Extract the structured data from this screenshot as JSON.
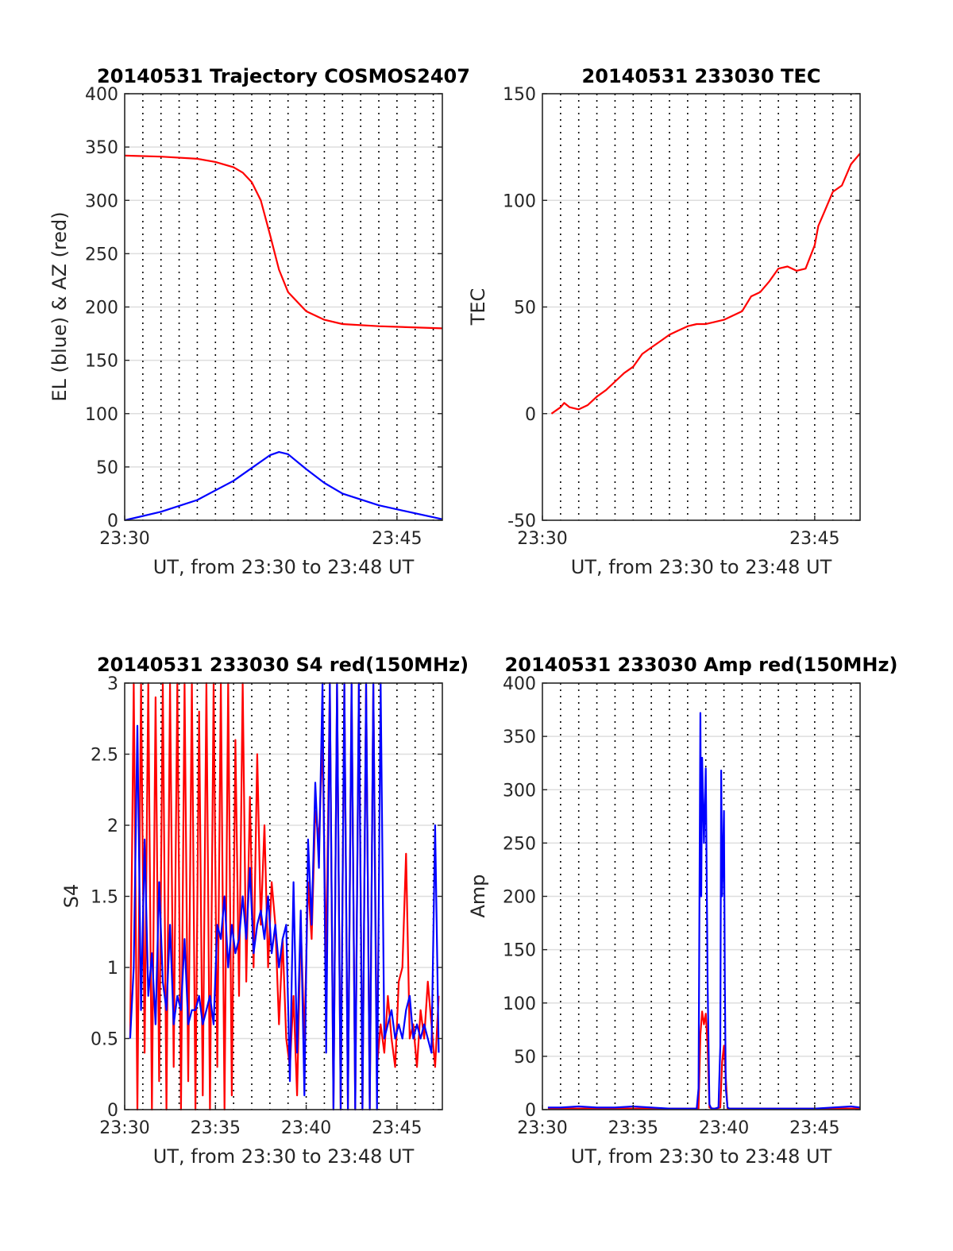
{
  "figure": {
    "background": "#ffffff",
    "series_colors": {
      "red": "#ff0000",
      "blue": "#0000ff"
    }
  },
  "chart_data": [
    {
      "id": "p1",
      "type": "line",
      "title": "20140531 Trajectory COSMOS2407",
      "xlabel": "UT, from 23:30 to 23:48 UT",
      "ylabel": "EL (blue) & AZ (red)",
      "x_unit": "minutes after 23:30 UT",
      "xlim": [
        0,
        17.5
      ],
      "ylim": [
        0,
        400
      ],
      "xticks": [
        {
          "x": 0,
          "label": "23:30"
        },
        {
          "x": 15,
          "label": "23:45"
        }
      ],
      "yticks": [
        {
          "y": 0,
          "label": "0"
        },
        {
          "y": 50,
          "label": "50"
        },
        {
          "y": 100,
          "label": "100"
        },
        {
          "y": 150,
          "label": "150"
        },
        {
          "y": 200,
          "label": "200"
        },
        {
          "y": 250,
          "label": "250"
        },
        {
          "y": 300,
          "label": "300"
        },
        {
          "y": 350,
          "label": "350"
        },
        {
          "y": 400,
          "label": "400"
        }
      ],
      "grid": {
        "vertical_dotted_every_min": 1,
        "horizontal": true
      },
      "series": [
        {
          "color": "red",
          "x": [
            0,
            2,
            4,
            5,
            6,
            6.5,
            7,
            7.5,
            8,
            8.5,
            9,
            10,
            11,
            12,
            14,
            17.5
          ],
          "y": [
            342,
            341,
            339,
            336,
            331,
            326,
            317,
            300,
            268,
            235,
            214,
            196,
            188,
            184,
            182,
            180
          ]
        },
        {
          "color": "blue",
          "x": [
            0,
            2,
            4,
            6,
            7,
            8,
            8.5,
            9,
            10,
            11,
            12,
            14,
            17.5
          ],
          "y": [
            0,
            8,
            19,
            37,
            49,
            61,
            64,
            62,
            48,
            35,
            25,
            14,
            1
          ]
        }
      ]
    },
    {
      "id": "p2",
      "type": "line",
      "title": "20140531 233030 TEC",
      "xlabel": "UT, from 23:30 to 23:48 UT",
      "ylabel": "TEC",
      "x_unit": "minutes after 23:30 UT",
      "xlim": [
        0,
        17.5
      ],
      "ylim": [
        -50,
        150
      ],
      "xticks": [
        {
          "x": 0,
          "label": "23:30"
        },
        {
          "x": 15,
          "label": "23:45"
        }
      ],
      "yticks": [
        {
          "y": -50,
          "label": "-50"
        },
        {
          "y": 0,
          "label": "0"
        },
        {
          "y": 50,
          "label": "50"
        },
        {
          "y": 100,
          "label": "100"
        },
        {
          "y": 150,
          "label": "150"
        }
      ],
      "grid": {
        "vertical_dotted_every_min": 1,
        "horizontal": true
      },
      "series": [
        {
          "color": "red",
          "x": [
            0.5,
            1,
            1.2,
            1.5,
            2,
            2.5,
            3,
            3.5,
            4,
            4.5,
            5,
            5.5,
            6,
            6.5,
            7,
            7.5,
            8,
            8.5,
            9,
            9.5,
            10,
            10.5,
            11,
            11.5,
            12,
            12.5,
            13,
            13.5,
            14,
            14.5,
            15,
            15.2,
            15.5,
            16,
            16.5,
            17,
            17.5
          ],
          "y": [
            0,
            3,
            5,
            3,
            2,
            4,
            8,
            11,
            15,
            19,
            22,
            28,
            31,
            34,
            37,
            39,
            41,
            42,
            42,
            43,
            44,
            46,
            48,
            55,
            57,
            62,
            68,
            69,
            67,
            68,
            79,
            88,
            94,
            104,
            107,
            117,
            122
          ]
        }
      ]
    },
    {
      "id": "p3",
      "type": "line",
      "title": "20140531 233030 S4 red(150MHz)",
      "xlabel": "UT, from 23:30 to 23:48 UT",
      "ylabel": "S4",
      "x_unit": "minutes after 23:30 UT",
      "xlim": [
        0,
        17.5
      ],
      "ylim": [
        0,
        3
      ],
      "xticks": [
        {
          "x": 0,
          "label": "23:30"
        },
        {
          "x": 5,
          "label": "23:35"
        },
        {
          "x": 10,
          "label": "23:40"
        },
        {
          "x": 15,
          "label": "23:45"
        }
      ],
      "yticks": [
        {
          "y": 0,
          "label": "0"
        },
        {
          "y": 0.5,
          "label": "0.5"
        },
        {
          "y": 1,
          "label": "1"
        },
        {
          "y": 1.5,
          "label": "1.5"
        },
        {
          "y": 2,
          "label": "2"
        },
        {
          "y": 2.5,
          "label": "2.5"
        },
        {
          "y": 3,
          "label": "3"
        }
      ],
      "grid": {
        "vertical_dotted_every_min": 1,
        "horizontal": true
      },
      "series": [
        {
          "color": "red",
          "x": [
            0.3,
            0.5,
            0.7,
            0.9,
            1.1,
            1.3,
            1.5,
            1.7,
            1.9,
            2.1,
            2.3,
            2.5,
            2.7,
            2.9,
            3.1,
            3.3,
            3.5,
            3.7,
            3.9,
            4.1,
            4.3,
            4.5,
            4.7,
            4.9,
            5.1,
            5.3,
            5.5,
            5.7,
            5.9,
            6.1,
            6.3,
            6.5,
            6.7,
            6.9,
            7.1,
            7.3,
            7.5,
            7.7,
            7.9,
            8.1,
            8.3,
            8.5,
            8.7,
            8.9,
            9.1,
            9.3,
            9.5,
            9.7,
            9.9,
            10.1,
            10.3,
            10.5,
            10.7,
            10.9,
            11.1,
            11.3,
            11.5,
            11.7,
            11.9,
            12.1,
            12.3,
            12.5,
            12.7,
            12.9,
            13.1,
            13.3,
            13.5,
            13.7,
            13.9,
            14.1,
            14.3,
            14.5,
            14.7,
            14.9,
            15.1,
            15.3,
            15.5,
            15.7,
            15.9,
            16.1,
            16.3,
            16.5,
            16.7,
            16.9,
            17.1,
            17.3
          ],
          "y": [
            0.5,
            3,
            0,
            3,
            0.4,
            3,
            0,
            2.9,
            0.2,
            3,
            0,
            3,
            0.3,
            3,
            0,
            3,
            0.2,
            3,
            0,
            2.8,
            0.1,
            3,
            0,
            3,
            0.3,
            3,
            0,
            3,
            0.1,
            2.6,
            0.8,
            3,
            0.9,
            2.2,
            1.0,
            2.5,
            1.3,
            2.0,
            1.0,
            1.6,
            1.3,
            0.6,
            1.2,
            0.5,
            0.3,
            0.8,
            0.1,
            1.3,
            0.5,
            1.6,
            1.2,
            2.1,
            1.9,
            2.6,
            1.0,
            3,
            0,
            3,
            0,
            3,
            0,
            3,
            0,
            3,
            0,
            3,
            0,
            3,
            0.3,
            0.6,
            0.4,
            0.8,
            0.5,
            0.3,
            0.9,
            1.0,
            1.8,
            0.5,
            0.6,
            0.3,
            0.7,
            0.5,
            0.9,
            0.6,
            0.3,
            0.8
          ]
        },
        {
          "color": "blue",
          "x": [
            0.3,
            0.5,
            0.7,
            0.9,
            1.1,
            1.3,
            1.5,
            1.7,
            1.9,
            2.1,
            2.3,
            2.5,
            2.7,
            2.9,
            3.1,
            3.3,
            3.5,
            3.7,
            3.9,
            4.1,
            4.3,
            4.5,
            4.7,
            4.9,
            5.1,
            5.3,
            5.5,
            5.7,
            5.9,
            6.1,
            6.3,
            6.5,
            6.7,
            6.9,
            7.1,
            7.3,
            7.5,
            7.7,
            7.9,
            8.1,
            8.3,
            8.5,
            8.7,
            8.9,
            9.1,
            9.3,
            9.5,
            9.7,
            9.9,
            10.1,
            10.3,
            10.5,
            10.7,
            10.9,
            11.1,
            11.3,
            11.5,
            11.7,
            11.9,
            12.1,
            12.3,
            12.5,
            12.7,
            12.9,
            13.1,
            13.3,
            13.5,
            13.7,
            13.9,
            14.1,
            14.3,
            14.5,
            14.7,
            14.9,
            15.1,
            15.3,
            15.5,
            15.7,
            15.9,
            16.1,
            16.3,
            16.5,
            16.7,
            16.9,
            17.1,
            17.3
          ],
          "y": [
            0.5,
            1.0,
            2.7,
            0.7,
            1.9,
            0.8,
            1.1,
            0.6,
            1.6,
            0.9,
            0.7,
            1.3,
            0.6,
            0.8,
            0.7,
            1.2,
            0.6,
            0.7,
            0.7,
            0.8,
            0.6,
            0.7,
            0.8,
            0.6,
            1.3,
            1.2,
            1.5,
            1.0,
            1.3,
            1.1,
            1.2,
            1.5,
            1.2,
            1.7,
            1.1,
            1.3,
            1.4,
            1.2,
            1.5,
            1.1,
            1.3,
            1.0,
            1.2,
            1.3,
            0.2,
            1.6,
            0.4,
            1.4,
            0.1,
            1.9,
            1.3,
            2.3,
            1.7,
            3,
            0.4,
            3,
            0,
            3,
            0,
            3,
            0,
            3,
            0,
            3,
            0,
            3,
            0,
            3,
            0,
            3,
            0.5,
            0.6,
            0.7,
            0.5,
            0.6,
            0.5,
            0.7,
            0.8,
            0.5,
            0.6,
            0.5,
            0.6,
            0.5,
            0.4,
            2.0,
            0.4
          ]
        }
      ]
    },
    {
      "id": "p4",
      "type": "line",
      "title": "20140531 233030 Amp red(150MHz)",
      "xlabel": "UT, from 23:30 to 23:48 UT",
      "ylabel": "Amp",
      "x_unit": "minutes after 23:30 UT",
      "xlim": [
        0,
        17.5
      ],
      "ylim": [
        0,
        400
      ],
      "xticks": [
        {
          "x": 0,
          "label": "23:30"
        },
        {
          "x": 5,
          "label": "23:35"
        },
        {
          "x": 10,
          "label": "23:40"
        },
        {
          "x": 15,
          "label": "23:45"
        }
      ],
      "yticks": [
        {
          "y": 0,
          "label": "0"
        },
        {
          "y": 50,
          "label": "50"
        },
        {
          "y": 100,
          "label": "100"
        },
        {
          "y": 150,
          "label": "150"
        },
        {
          "y": 200,
          "label": "200"
        },
        {
          "y": 250,
          "label": "250"
        },
        {
          "y": 300,
          "label": "300"
        },
        {
          "y": 350,
          "label": "350"
        },
        {
          "y": 400,
          "label": "400"
        }
      ],
      "grid": {
        "vertical_dotted_every_min": 1,
        "horizontal": true
      },
      "series": [
        {
          "color": "red",
          "x": [
            0.3,
            8.3,
            8.6,
            8.7,
            8.8,
            8.9,
            9.0,
            9.1,
            9.2,
            9.4,
            9.6,
            9.8,
            9.9,
            10.0,
            10.1,
            10.2,
            10.4,
            17.5
          ],
          "y": [
            1,
            1,
            1,
            70,
            92,
            80,
            90,
            60,
            2,
            1,
            1,
            2,
            45,
            60,
            30,
            1,
            1,
            1
          ]
        },
        {
          "color": "blue",
          "x": [
            0.3,
            1,
            2,
            3,
            4,
            5,
            6,
            7,
            8,
            8.5,
            8.6,
            8.7,
            8.75,
            8.8,
            8.9,
            9.0,
            9.1,
            9.2,
            9.3,
            9.5,
            9.7,
            9.8,
            9.85,
            9.9,
            10.0,
            10.05,
            10.1,
            10.2,
            10.3,
            10.5,
            11,
            12,
            13,
            14,
            15,
            16,
            17,
            17.5
          ],
          "y": [
            2,
            2,
            3,
            2,
            2,
            3,
            2,
            1,
            1,
            1,
            20,
            372,
            200,
            330,
            250,
            320,
            120,
            5,
            1,
            1,
            2,
            60,
            318,
            200,
            280,
            120,
            20,
            2,
            1,
            1,
            1,
            1,
            1,
            1,
            1,
            2,
            3,
            2
          ]
        }
      ]
    }
  ]
}
